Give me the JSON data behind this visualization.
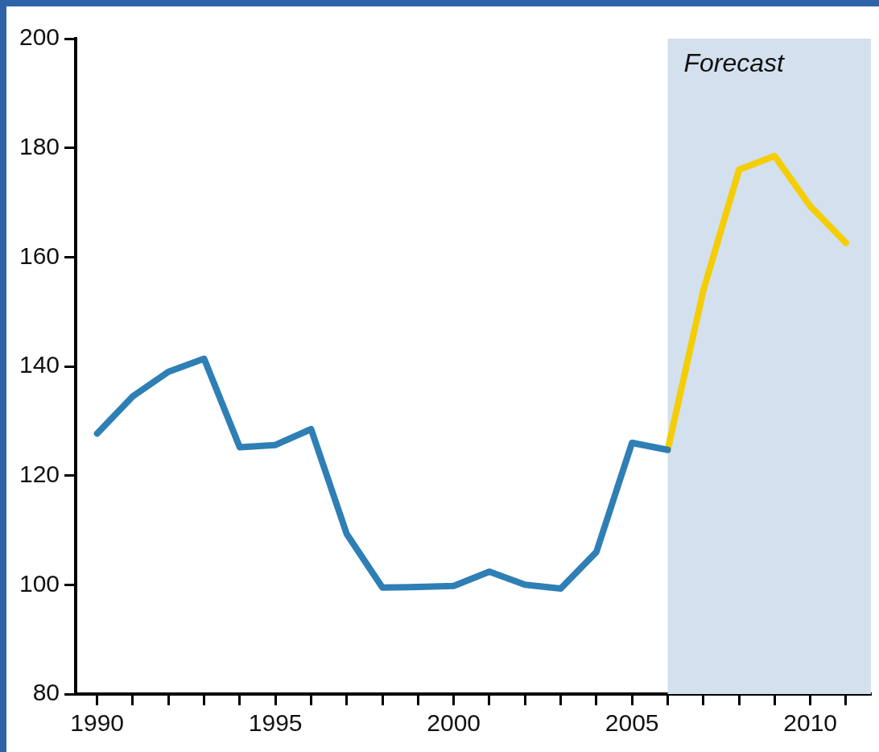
{
  "chart_data": {
    "type": "line",
    "x": [
      1990,
      1991,
      1992,
      1993,
      1994,
      1995,
      1996,
      1997,
      1998,
      1999,
      2000,
      2001,
      2002,
      2003,
      2004,
      2005,
      2006
    ],
    "series": [
      {
        "color": "#2e7fb5",
        "values": [
          127.7,
          134.5,
          139,
          141.4,
          125.2,
          125.6,
          128.5,
          109.3,
          99.5,
          99.6,
          99.8,
          102.4,
          100,
          99.3,
          106,
          126,
          124.7
        ]
      },
      {
        "color": "#f5cd05",
        "x": [
          2006,
          2007,
          2008,
          2009,
          2010,
          2011
        ],
        "values": [
          124.7,
          153.9,
          176,
          178.5,
          169.3,
          162.6
        ]
      }
    ],
    "xlim": [
      1989.4,
      2011.7
    ],
    "xticks": [
      1990,
      {
        "value": 1991,
        "label": null
      },
      {
        "value": 1992,
        "label": null
      },
      {
        "value": 1993,
        "label": null
      },
      {
        "value": 1994,
        "label": null
      },
      1995,
      {
        "value": 1996,
        "label": null
      },
      {
        "value": 1997,
        "label": null
      },
      {
        "value": 1998,
        "label": null
      },
      {
        "value": 1999,
        "label": null
      },
      2000,
      {
        "value": 2001,
        "label": null
      },
      {
        "value": 2002,
        "label": null
      },
      {
        "value": 2003,
        "label": null
      },
      {
        "value": 2004,
        "label": null
      },
      2005,
      {
        "value": 2006,
        "label": null
      },
      {
        "value": 2007,
        "label": null
      },
      {
        "value": 2008,
        "label": null
      },
      {
        "value": 2009,
        "label": null
      },
      2010,
      {
        "value": 2011,
        "label": null
      }
    ],
    "ylim": [
      80,
      200
    ],
    "yticks": [
      80,
      100,
      120,
      140,
      160,
      180,
      200
    ],
    "bands": [
      {
        "axis": "x",
        "from": 2006,
        "to": 2011.7,
        "label": "Forecast",
        "color": "#d3e0ee"
      }
    ],
    "grid": false,
    "legend": false,
    "marker": "none",
    "line_style": "solid"
  }
}
